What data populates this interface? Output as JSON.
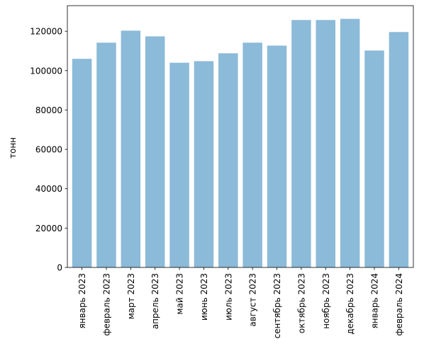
{
  "chart_data": {
    "type": "bar",
    "title": "",
    "xlabel": "",
    "ylabel": "тонн",
    "categories": [
      "январь 2023",
      "февраль 2023",
      "март 2023",
      "апрель 2023",
      "май 2023",
      "июнь 2023",
      "июль 2023",
      "август 2023",
      "сентябрь 2023",
      "октябрь 2023",
      "ноябрь 2023",
      "декабрь 2023",
      "январь 2024",
      "февраль 2024"
    ],
    "values": [
      106000,
      114200,
      120300,
      117400,
      104000,
      104800,
      108800,
      114200,
      112700,
      125700,
      125700,
      126300,
      110200,
      119600
    ],
    "ylim": [
      0,
      133000
    ],
    "yticks": [
      0,
      20000,
      40000,
      60000,
      80000,
      100000,
      120000
    ],
    "ytick_labels": [
      "0",
      "20000",
      "40000",
      "60000",
      "80000",
      "100000",
      "120000"
    ],
    "grid": false,
    "legend": "none",
    "bar_color": "#8cbad9"
  }
}
